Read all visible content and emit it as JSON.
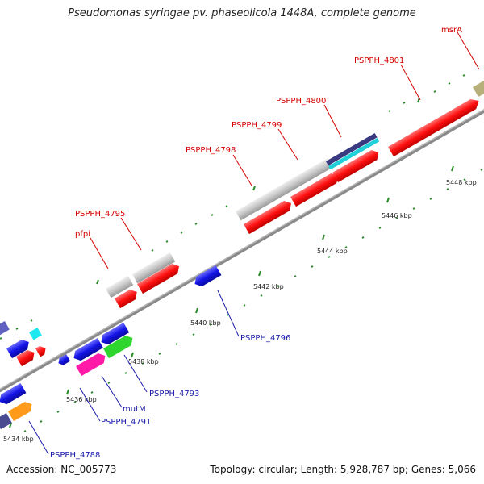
{
  "title": "Pseudomonas syringae pv. phaseolicola 1448A, complete genome",
  "footer": {
    "accession": "Accession: NC_005773",
    "summary": "Topology: circular; Length: 5,928,787 bp; Genes: 5,066"
  },
  "scale_labels": [
    "5434 kbp",
    "5436 kbp",
    "5438 kbp",
    "5440 kbp",
    "5442 kbp",
    "5444 kbp",
    "5446 kbp",
    "5448 kbp"
  ],
  "genes_top": [
    "msrA",
    "PSPPH_4801",
    "PSPPH_4800",
    "PSPPH_4799",
    "PSPPH_4798",
    "PSPPH_4795",
    "pfpi"
  ],
  "genes_bottom": [
    "PSPPH_4796",
    "PSPPH_4793",
    "mutM",
    "PSPPH_4791",
    "PSPPH_4788"
  ],
  "colors": {
    "red": "#ff1010",
    "blue": "#1414e6",
    "grey": "#c8c8c8",
    "navy": "#3a3a80",
    "cyan": "#20d0d8",
    "magenta": "#ff1aa8",
    "green": "#2ed62e",
    "orange": "#ff9a1a",
    "olive": "#b8b07a",
    "backbone": "#8a8a8a",
    "tick": "#2a8a2a",
    "label_red": "#d40000",
    "label_blue": "#1a1aa8"
  }
}
